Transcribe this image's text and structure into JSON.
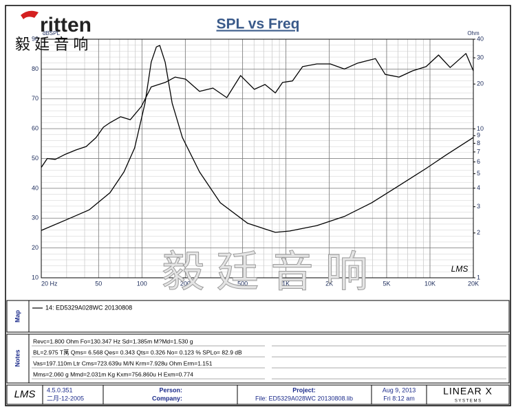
{
  "header": {
    "logo": "ritten",
    "logo_cn": "毅 廷 音 响",
    "watermark": "毅 廷 音 响"
  },
  "chart_data": {
    "type": "line",
    "title": "SPL vs Freq",
    "y_label": "dBSPL",
    "y2_label": "Ohm",
    "annotation": "LMS",
    "log_x": true,
    "log_y2": true,
    "grid": true,
    "xlim": [
      20,
      20000
    ],
    "xticks": [
      {
        "value": 20,
        "label": "20 Hz"
      },
      50,
      100,
      200,
      500,
      {
        "value": 1000,
        "label": "1K"
      },
      {
        "value": 2000,
        "label": "2K"
      },
      {
        "value": 5000,
        "label": "5K"
      },
      {
        "value": 10000,
        "label": "10K"
      },
      {
        "value": 20000,
        "label": "20K"
      }
    ],
    "ylim": [
      10,
      90
    ],
    "yticks": [
      10,
      20,
      30,
      40,
      50,
      60,
      70,
      80,
      90
    ],
    "y2lim": [
      1,
      40
    ],
    "y2ticks": [
      1,
      2,
      3,
      4,
      5,
      6,
      7,
      8,
      9,
      10,
      20,
      30,
      40
    ],
    "series": [
      {
        "name": "14: ED5329A028WC   20130808",
        "color": "#000000",
        "x": [
          20,
          22,
          25,
          29,
          35,
          41,
          48,
          54,
          60,
          71,
          83,
          99,
          116,
          145,
          170,
          201,
          251,
          311,
          388,
          484,
          603,
          715,
          844,
          947,
          1110,
          1304,
          1637,
          2032,
          2545,
          3155,
          4179,
          4889,
          6099,
          7576,
          9398,
          11468,
          13812,
          17752,
          20000
        ],
        "values": [
          47,
          50,
          49.7,
          51.3,
          52.9,
          54,
          57,
          60.5,
          62,
          64,
          63,
          67.4,
          74,
          75.5,
          77.3,
          76.6,
          72.5,
          73.6,
          70.4,
          77.8,
          73.2,
          74.8,
          72,
          75.5,
          76,
          80.8,
          81.7,
          81.7,
          80,
          82,
          83.5,
          78.2,
          77.3,
          79.4,
          80.8,
          84.7,
          80.5,
          85.2,
          79.4
        ]
      },
      {
        "color": "#000000",
        "axis": "y2",
        "x": [
          20,
          31,
          43,
          60,
          75,
          89,
          105,
          116,
          126,
          133,
          145,
          162,
          191,
          251,
          350,
          542,
          844,
          1060,
          1637,
          2545,
          3937,
          6099,
          9398,
          13010,
          20000
        ],
        "values": [
          2.08,
          2.49,
          2.86,
          3.73,
          5.14,
          7.45,
          14.9,
          28.1,
          35.5,
          36.3,
          28,
          14.9,
          8.76,
          5.14,
          3.19,
          2.32,
          2.02,
          2.06,
          2.24,
          2.58,
          3.19,
          4.16,
          5.42,
          6.7,
          8.76
        ]
      }
    ]
  },
  "map_panel": {
    "label": "Map"
  },
  "notes_panel": {
    "label": "Notes",
    "lines": [
      "Revc=1.800 Ohm  Fo=130.347 Hz  Sd=1.385m M?Md=1.530 g",
      "BL=2.975 T萬  Qms= 6.568  Qes= 0.343  Qts= 0.326  No= 0.123 %  SPLo= 82.9 dB",
      "Vas=197.110m Ltr  Cms=723.639u M/N  Krm=7.928u Ohm  Erm=1.151",
      "Mms=2.060 g  Mmd=2.031m Kg  Kxm=756.860u H  Exm=0.774"
    ]
  },
  "footer": {
    "logo": "LMS",
    "version": "4.5.0.351",
    "build_date": "二月-12-2005",
    "person": "Person:",
    "company": "Company:",
    "project": "Project:",
    "file": "File: ED5329A028WC  20130808.lib",
    "date": "Aug  9, 2013",
    "time": "Fri  8:12 am",
    "brand": "LINEAR X",
    "brand_sub": "S Y S T E M S"
  }
}
